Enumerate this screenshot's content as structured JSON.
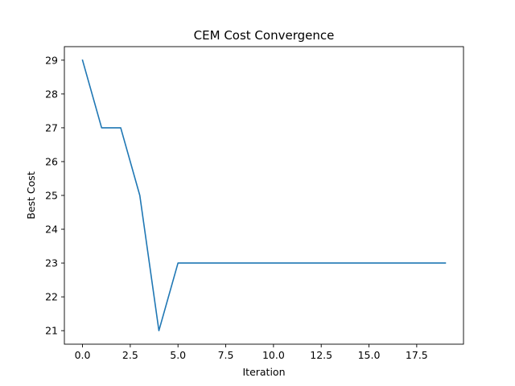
{
  "chart_data": {
    "type": "line",
    "title": "CEM Cost Convergence",
    "xlabel": "Iteration",
    "ylabel": "Best Cost",
    "xlim": [
      -0.95,
      19.95
    ],
    "ylim": [
      20.6,
      29.4
    ],
    "xticks": [
      0,
      2.5,
      5,
      7.5,
      10,
      12.5,
      15,
      17.5
    ],
    "xtick_labels": [
      "0.0",
      "2.5",
      "5.0",
      "7.5",
      "10.0",
      "12.5",
      "15.0",
      "17.5"
    ],
    "yticks": [
      21,
      22,
      23,
      24,
      25,
      26,
      27,
      28,
      29
    ],
    "ytick_labels": [
      "21",
      "22",
      "23",
      "24",
      "25",
      "26",
      "27",
      "28",
      "29"
    ],
    "grid": false,
    "legend": "none",
    "series": [
      {
        "color": "#1f77b4",
        "x": [
          0,
          1,
          2,
          3,
          4,
          5,
          6,
          7,
          8,
          9,
          10,
          11,
          12,
          13,
          14,
          15,
          16,
          17,
          18,
          19
        ],
        "y": [
          29,
          27,
          27,
          25,
          21,
          23,
          23,
          23,
          23,
          23,
          23,
          23,
          23,
          23,
          23,
          23,
          23,
          23,
          23,
          23
        ]
      }
    ]
  }
}
